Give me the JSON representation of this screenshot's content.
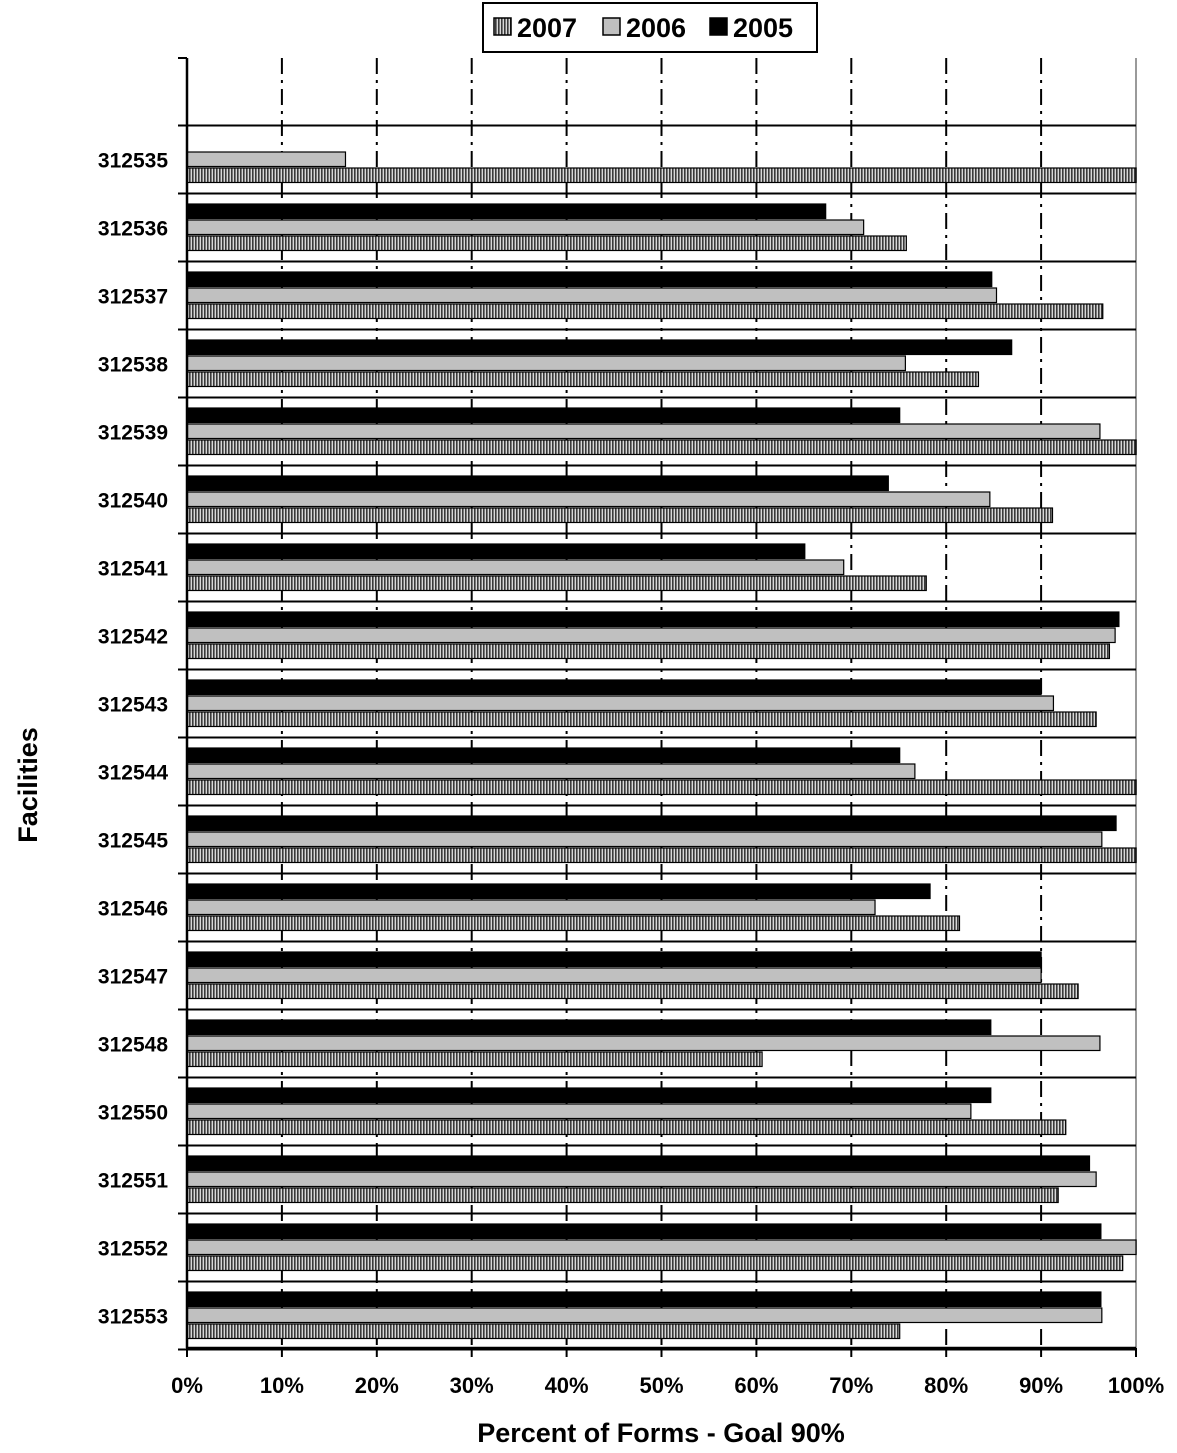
{
  "chart_data": {
    "type": "bar",
    "orientation": "horizontal",
    "xlabel": "Percent of Forms - Goal 90%",
    "ylabel": "Facilities",
    "xlim": [
      0,
      100
    ],
    "x_ticks": [
      "0%",
      "10%",
      "20%",
      "30%",
      "40%",
      "50%",
      "60%",
      "70%",
      "80%",
      "90%",
      "100%"
    ],
    "grid": "vertical dash-dot",
    "legend_position": "top-center",
    "categories": [
      "312535",
      "312536",
      "312537",
      "312538",
      "312539",
      "312540",
      "312541",
      "312542",
      "312543",
      "312544",
      "312545",
      "312546",
      "312547",
      "312548",
      "312550",
      "312551",
      "312552",
      "312553"
    ],
    "series": [
      {
        "name": "2005",
        "fill": "#000000",
        "pattern": "solid",
        "values": [
          null,
          67.3,
          84.8,
          86.9,
          75.1,
          73.9,
          65.1,
          98.2,
          90.0,
          75.1,
          97.9,
          78.3,
          90.0,
          84.7,
          84.7,
          95.1,
          96.3,
          96.3
        ]
      },
      {
        "name": "2006",
        "fill": "#c0c0c0",
        "pattern": "solid",
        "values": [
          16.7,
          71.3,
          85.3,
          75.7,
          96.2,
          84.6,
          69.2,
          97.8,
          91.3,
          76.7,
          96.4,
          72.5,
          90.0,
          96.2,
          82.6,
          95.8,
          100.0,
          96.4
        ]
      },
      {
        "name": "2007",
        "fill": "#808080",
        "pattern": "vertical-stripes",
        "values": [
          100.0,
          75.8,
          96.5,
          83.4,
          100.0,
          91.2,
          77.9,
          97.2,
          95.8,
          100.0,
          100.0,
          81.4,
          93.9,
          60.6,
          92.6,
          91.8,
          98.6,
          75.1
        ]
      }
    ],
    "legend": [
      "2007",
      "2006",
      "2005"
    ]
  }
}
